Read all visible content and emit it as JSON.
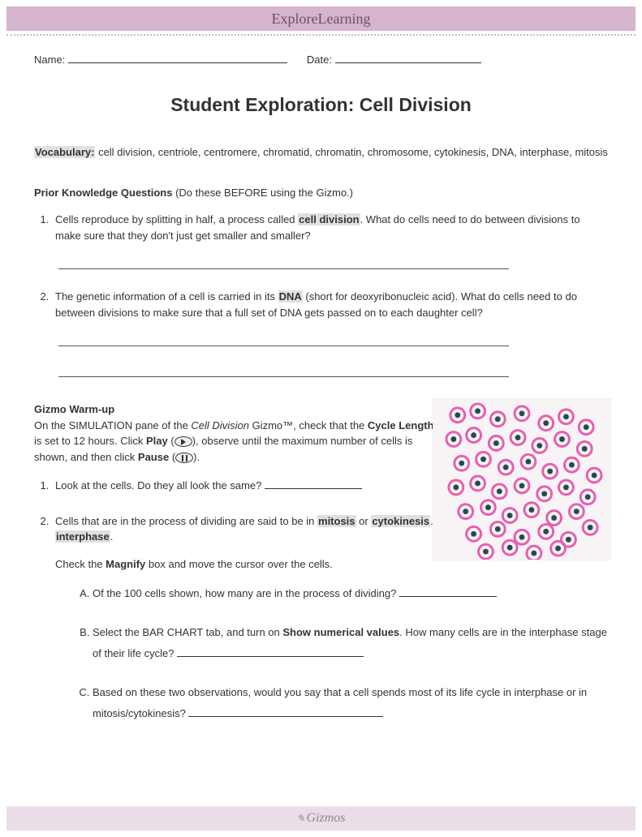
{
  "header": {
    "brand": "ExploreLearning"
  },
  "fields": {
    "name_label": "Name:",
    "date_label": "Date:"
  },
  "title": "Student Exploration: Cell Division",
  "vocabulary": {
    "label": "Vocabulary:",
    "terms": " cell division, centriole, centromere, chromatid, chromatin, chromosome, cytokinesis, DNA, interphase, mitosis"
  },
  "prior": {
    "label": "Prior Knowledge Questions",
    "note": " (Do these BEFORE using the Gizmo.)",
    "q1_a": "Cells reproduce by splitting in half, a process called ",
    "q1_hl": "cell division",
    "q1_b": ". What do cells need to do between divisions to make sure that they don't just get smaller and smaller?",
    "q2_a": "The genetic information of a cell is carried in its ",
    "q2_hl": "DNA",
    "q2_b": " (short for deoxyribonucleic acid). What do cells need to do between divisions to make sure that a full set of DNA gets passed on to each daughter cell?"
  },
  "warmup": {
    "label": "Gizmo Warm-up",
    "intro_a": "On the SIMULATION pane of the ",
    "intro_i1": "Cell Division",
    "intro_b": " Gizmo™, check that the ",
    "intro_bold1": "Cycle Length",
    "intro_c": " is set to 12 hours. Click ",
    "intro_bold2": "Play",
    "intro_d": " (",
    "intro_e": "), observe until the maximum number of cells is shown, and then click ",
    "intro_bold3": "Pause",
    "intro_f": " (",
    "intro_g": ").",
    "q1": "Look at the cells. Do they all look the same? ",
    "q2_a": "Cells that are in the process of dividing are said to be in ",
    "q2_hl1": "mitosis",
    "q2_b": " or ",
    "q2_hl2": "cytokinesis",
    "q2_c": ". Cells that are not dividing are in ",
    "q2_hl3": "interphase",
    "q2_d": ".",
    "q2_check_a": "Check the ",
    "q2_check_b": "Magnify",
    "q2_check_c": " box and move the cursor over the cells.",
    "subA": "Of the 100 cells shown, how many are in the process of dividing? ",
    "subB_a": "Select the BAR CHART tab, and turn on ",
    "subB_b": "Show numerical values",
    "subB_c": ". How many cells are in the interphase stage of their life cycle? ",
    "subC": "Based on these two observations, would you say that a cell spends most of its life cycle in interphase or in mitosis/cytokinesis? "
  },
  "footer": {
    "brand": "Gizmos"
  },
  "style": {
    "header_bg": "#d4b5cc",
    "footer_bg": "#eadde8",
    "highlight_bg": "#e0e0e0",
    "cell_pink": "#e85db0",
    "cell_core": "#2a4a4a",
    "cell_img_bg": "#f8f4f6"
  }
}
